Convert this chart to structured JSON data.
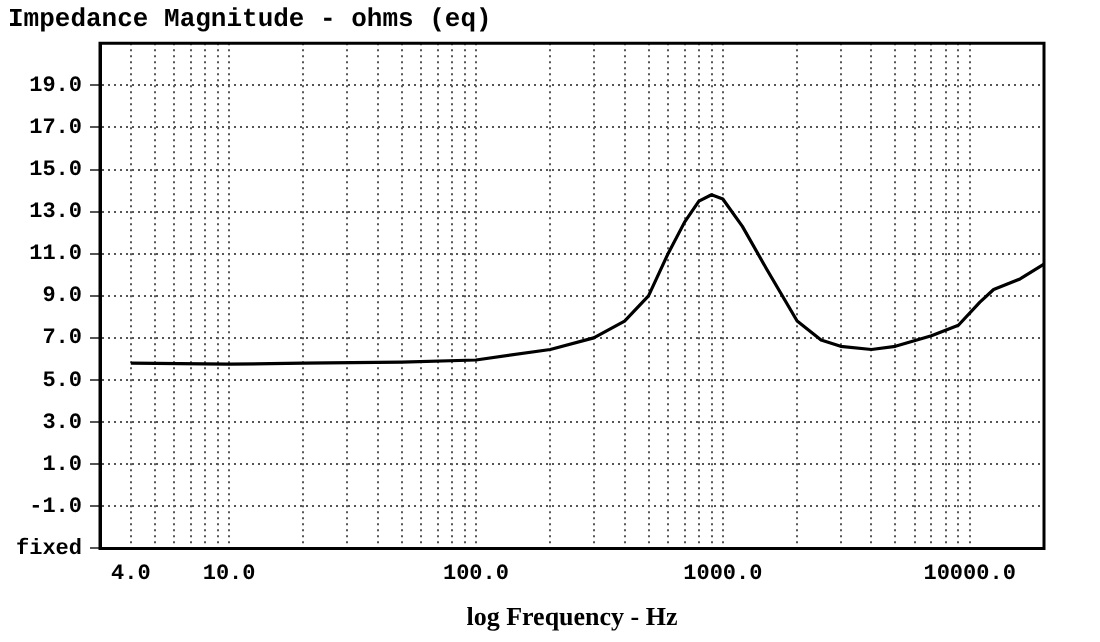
{
  "chart_data": {
    "type": "line",
    "title": "Impedance Magnitude - ohms (eq)",
    "xlabel": "log Frequency - Hz",
    "log": "x",
    "grid": true,
    "legend": false,
    "marker": "none",
    "line_style": "solid",
    "x": [
      4,
      10,
      20,
      50,
      100,
      200,
      300,
      400,
      500,
      600,
      700,
      800,
      900,
      1000,
      1200,
      1500,
      2000,
      2500,
      3000,
      4000,
      5000,
      7000,
      9000,
      11000,
      12500,
      16000,
      20000
    ],
    "series": [
      {
        "color": "#000000",
        "values": [
          5.8,
          5.75,
          5.8,
          5.85,
          5.95,
          6.45,
          7.0,
          7.8,
          9.0,
          11.0,
          12.5,
          13.5,
          13.8,
          13.6,
          12.3,
          10.3,
          7.8,
          6.9,
          6.6,
          6.45,
          6.6,
          7.1,
          7.6,
          8.7,
          9.3,
          9.8,
          10.5
        ]
      }
    ],
    "xlim": [
      3,
      20000
    ],
    "xticks": [
      {
        "value": 4,
        "label": "4.0"
      },
      {
        "value": 5,
        "label": null
      },
      {
        "value": 6,
        "label": null
      },
      {
        "value": 7,
        "label": null
      },
      {
        "value": 8,
        "label": null
      },
      {
        "value": 9,
        "label": null
      },
      {
        "value": 10,
        "label": "10.0"
      },
      {
        "value": 20,
        "label": null
      },
      {
        "value": 30,
        "label": null
      },
      {
        "value": 40,
        "label": null
      },
      {
        "value": 50,
        "label": null
      },
      {
        "value": 60,
        "label": null
      },
      {
        "value": 70,
        "label": null
      },
      {
        "value": 80,
        "label": null
      },
      {
        "value": 90,
        "label": null
      },
      {
        "value": 100,
        "label": "100.0"
      },
      {
        "value": 200,
        "label": null
      },
      {
        "value": 300,
        "label": null
      },
      {
        "value": 400,
        "label": null
      },
      {
        "value": 500,
        "label": null
      },
      {
        "value": 600,
        "label": null
      },
      {
        "value": 700,
        "label": null
      },
      {
        "value": 800,
        "label": null
      },
      {
        "value": 900,
        "label": null
      },
      {
        "value": 1000,
        "label": "1000.0"
      },
      {
        "value": 2000,
        "label": null
      },
      {
        "value": 3000,
        "label": null
      },
      {
        "value": 4000,
        "label": null
      },
      {
        "value": 5000,
        "label": null
      },
      {
        "value": 6000,
        "label": null
      },
      {
        "value": 7000,
        "label": null
      },
      {
        "value": 8000,
        "label": null
      },
      {
        "value": 9000,
        "label": null
      },
      {
        "value": 10000,
        "label": "10000.0"
      },
      {
        "value": 20000,
        "label": null
      }
    ],
    "ylim": [
      -3,
      21
    ],
    "yticks": [
      {
        "value": -3,
        "label": "fixed"
      },
      {
        "value": -1,
        "label": "-1.0"
      },
      {
        "value": 1,
        "label": "1.0"
      },
      {
        "value": 3,
        "label": "3.0"
      },
      {
        "value": 5,
        "label": "5.0"
      },
      {
        "value": 7,
        "label": "7.0"
      },
      {
        "value": 9,
        "label": "9.0"
      },
      {
        "value": 11,
        "label": "11.0"
      },
      {
        "value": 13,
        "label": "13.0"
      },
      {
        "value": 15,
        "label": "15.0"
      },
      {
        "value": 17,
        "label": "17.0"
      },
      {
        "value": 19,
        "label": "19.0"
      }
    ]
  }
}
